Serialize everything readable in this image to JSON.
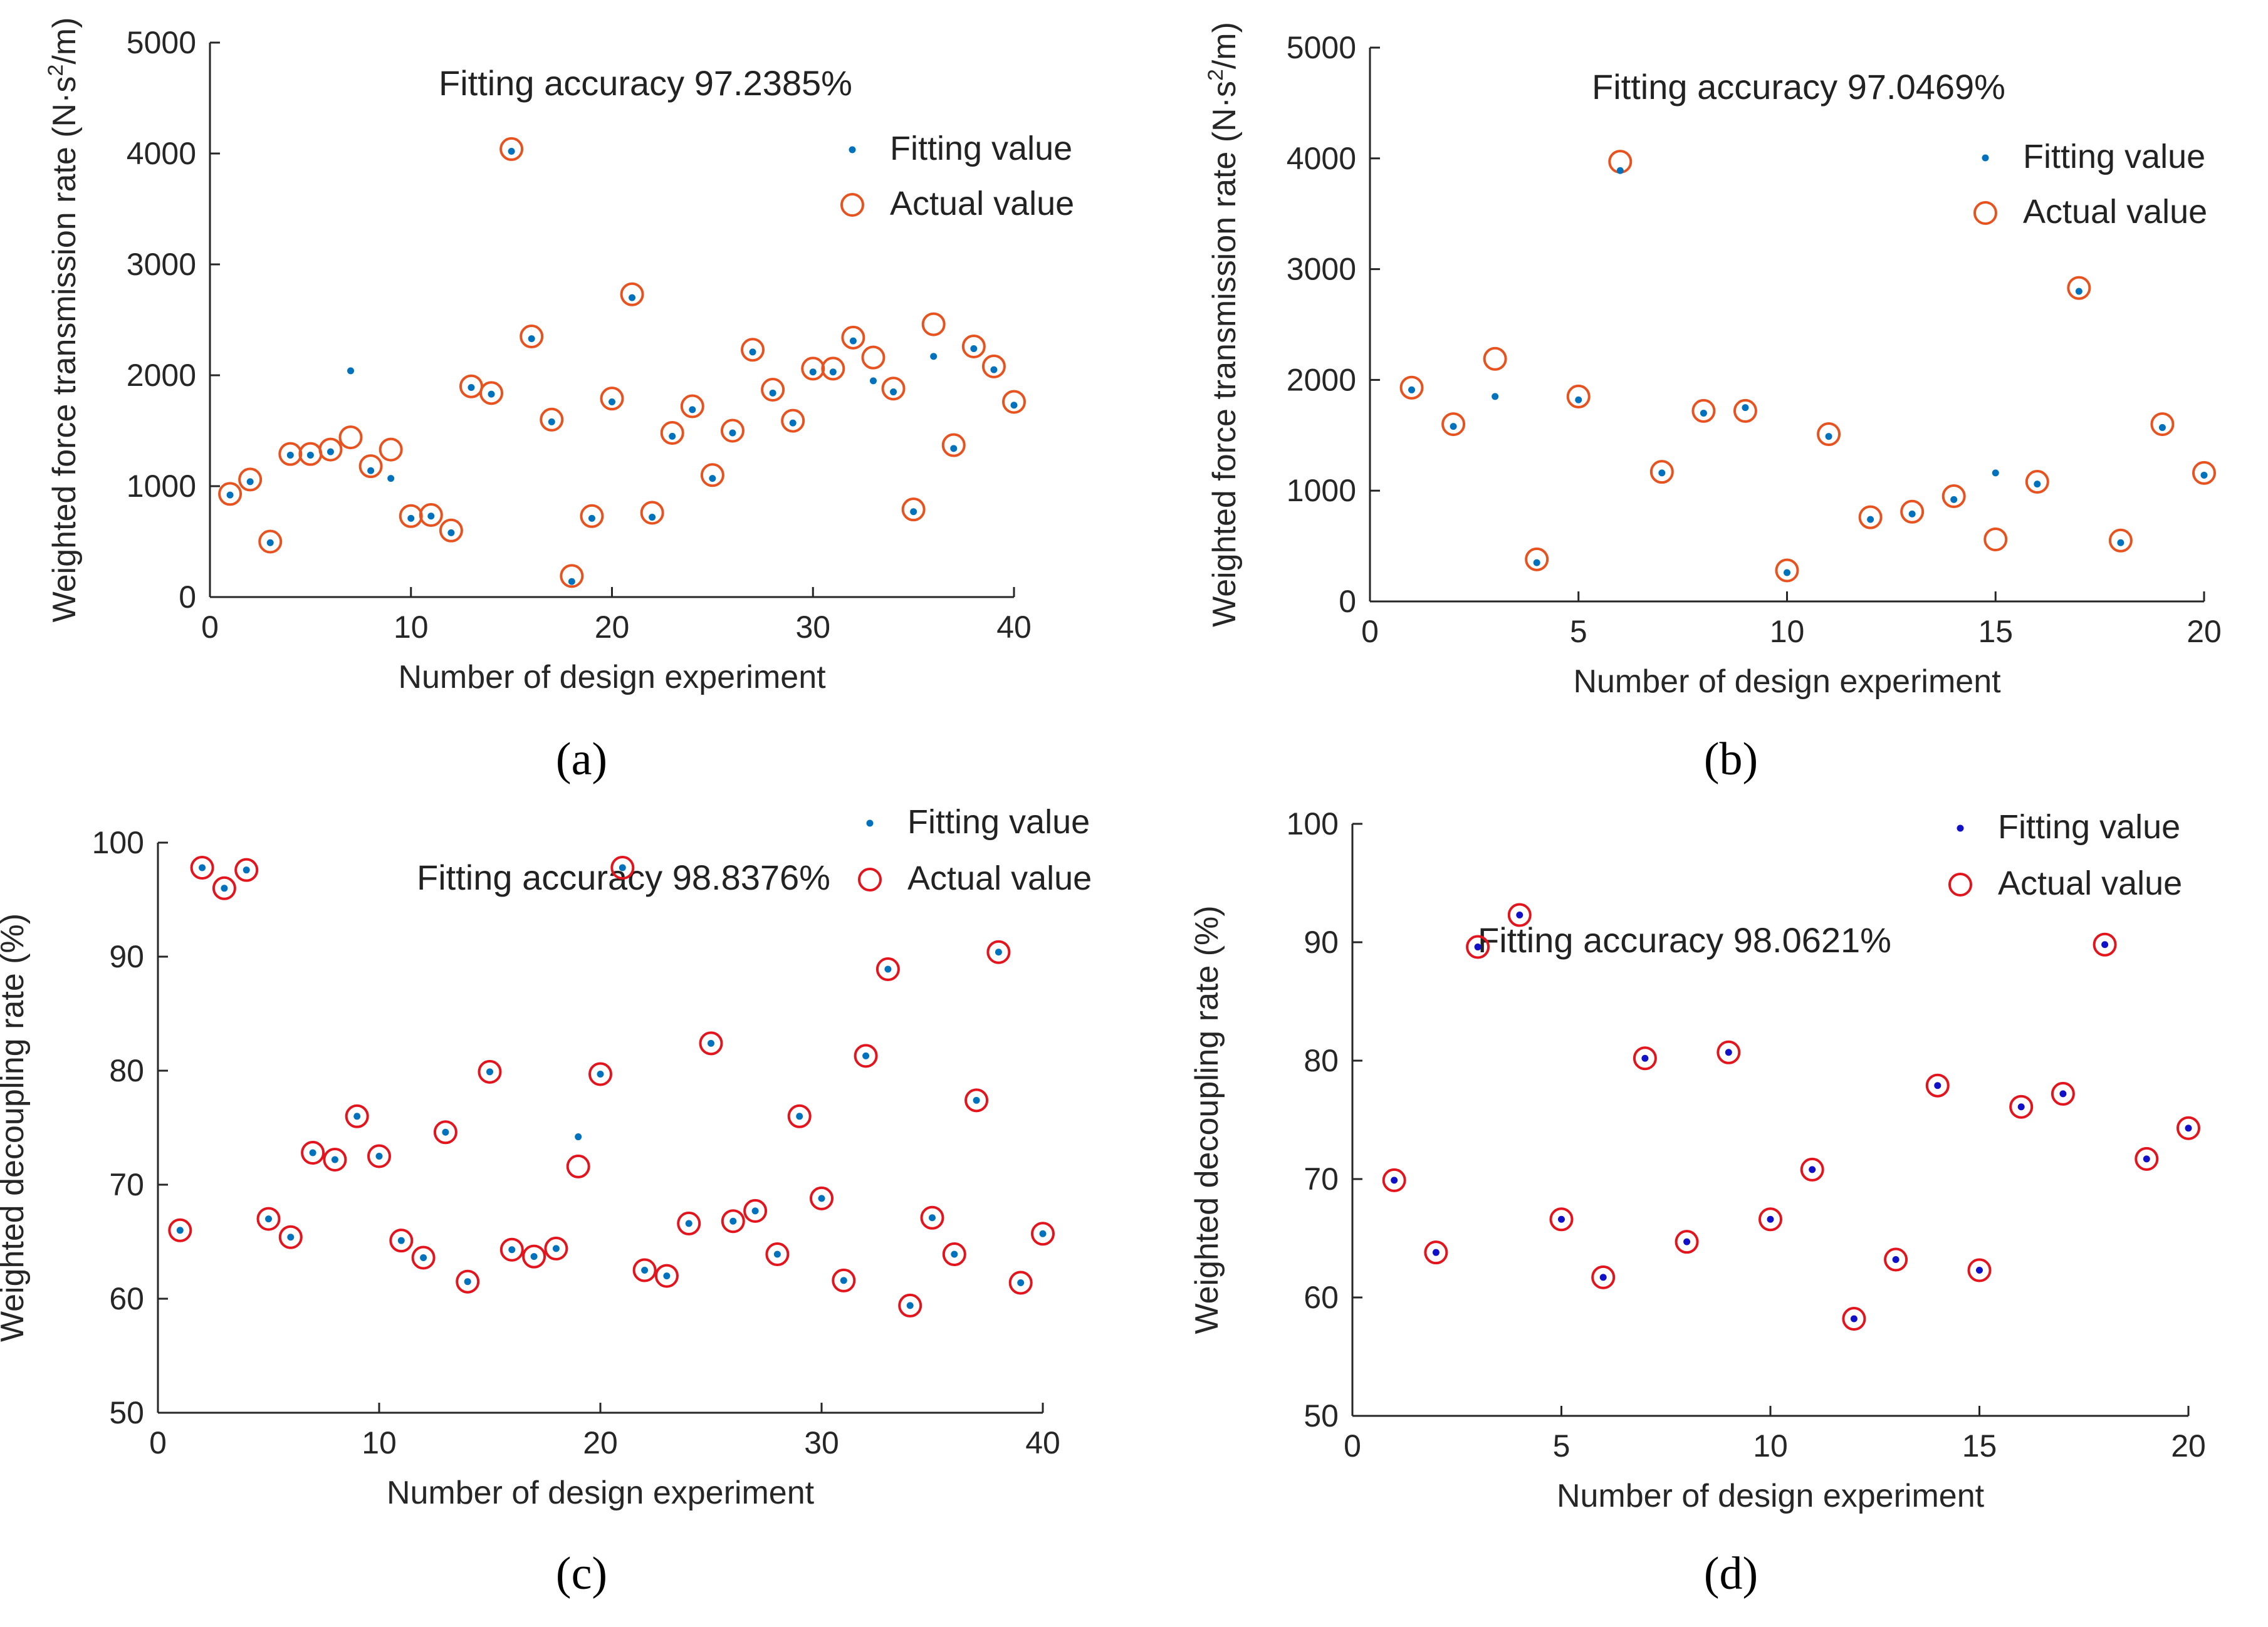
{
  "figure": {
    "sublabels": [
      "(a)",
      "(b)",
      "(c)",
      "(d)"
    ]
  },
  "chart_data": [
    {
      "id": "a",
      "type": "scatter",
      "title": "Fitting accuracy 97.2385%",
      "xlabel": "Number of design experiment",
      "ylabel": "Weighted force transmission rate (N·s²/m)",
      "ylabel_parts": [
        "Weighted force transmission rate (N·s",
        "2",
        "/m)"
      ],
      "xlim": [
        0,
        40
      ],
      "ylim": [
        0,
        5000
      ],
      "xticks": [
        0,
        10,
        20,
        30,
        40
      ],
      "yticks": [
        0,
        1000,
        2000,
        3000,
        4000,
        5000
      ],
      "legend": "top-right",
      "series": [
        {
          "name": "Fitting value",
          "marker": "dot",
          "color": "#0072BD",
          "x": [
            1,
            2,
            3,
            4,
            5,
            6,
            7,
            8,
            9,
            10,
            11,
            12,
            13,
            14,
            15,
            16,
            17,
            18,
            19,
            20,
            21,
            22,
            23,
            24,
            25,
            26,
            27,
            28,
            29,
            30,
            31,
            32,
            33,
            34,
            35,
            36,
            37,
            38,
            39,
            40
          ],
          "y": [
            920,
            1040,
            490,
            1280,
            1280,
            1310,
            2040,
            1140,
            1070,
            710,
            730,
            580,
            1890,
            1830,
            4020,
            2330,
            1580,
            140,
            710,
            1760,
            2700,
            720,
            1450,
            1690,
            1070,
            1480,
            2210,
            1840,
            1570,
            2030,
            2030,
            2310,
            1950,
            1850,
            770,
            2170,
            1340,
            2240,
            2050,
            1730
          ]
        },
        {
          "name": "Actual value",
          "marker": "circle",
          "color": "#E8521E",
          "x": [
            1,
            2,
            3,
            4,
            5,
            6,
            7,
            8,
            9,
            10,
            11,
            12,
            13,
            14,
            15,
            16,
            17,
            18,
            19,
            20,
            21,
            22,
            23,
            24,
            25,
            26,
            27,
            28,
            29,
            30,
            31,
            32,
            33,
            34,
            35,
            36,
            37,
            38,
            39,
            40
          ],
          "y": [
            930,
            1060,
            500,
            1290,
            1290,
            1330,
            1440,
            1180,
            1330,
            730,
            740,
            600,
            1900,
            1840,
            4040,
            2350,
            1600,
            190,
            730,
            1790,
            2730,
            760,
            1480,
            1720,
            1100,
            1500,
            2230,
            1870,
            1590,
            2060,
            2060,
            2340,
            2160,
            1880,
            790,
            2460,
            1370,
            2260,
            2080,
            1760
          ]
        }
      ]
    },
    {
      "id": "b",
      "type": "scatter",
      "title": "Fitting accuracy 97.0469%",
      "xlabel": "Number of design experiment",
      "ylabel": "Weighted force transmission rate (N·s²/m)",
      "ylabel_parts": [
        "Weighted force transmission rate (N·s",
        "2",
        "/m)"
      ],
      "xlim": [
        0,
        20
      ],
      "ylim": [
        0,
        5000
      ],
      "xticks": [
        0,
        5,
        10,
        15,
        20
      ],
      "yticks": [
        0,
        1000,
        2000,
        3000,
        4000,
        5000
      ],
      "legend": "top-right",
      "series": [
        {
          "name": "Fitting value",
          "marker": "dot",
          "color": "#0072BD",
          "x": [
            1,
            2,
            3,
            4,
            5,
            6,
            7,
            8,
            9,
            10,
            11,
            12,
            13,
            14,
            15,
            16,
            17,
            18,
            19,
            20
          ],
          "y": [
            1910,
            1580,
            1850,
            350,
            1820,
            3890,
            1160,
            1700,
            1750,
            260,
            1490,
            740,
            790,
            920,
            1160,
            1060,
            2800,
            530,
            1570,
            1140
          ]
        },
        {
          "name": "Actual value",
          "marker": "circle",
          "color": "#E8521E",
          "x": [
            1,
            2,
            3,
            4,
            5,
            6,
            7,
            8,
            9,
            10,
            11,
            12,
            13,
            14,
            15,
            16,
            17,
            18,
            19,
            20
          ],
          "y": [
            1930,
            1600,
            2190,
            380,
            1850,
            3970,
            1170,
            1720,
            1720,
            280,
            1510,
            760,
            810,
            950,
            560,
            1080,
            2830,
            550,
            1600,
            1160
          ]
        }
      ]
    },
    {
      "id": "c",
      "type": "scatter",
      "title": "Fitting accuracy 98.8376%",
      "xlabel": "Number of design experiment",
      "ylabel": "Weighted decoupling rate (%)",
      "xlim": [
        0,
        40
      ],
      "ylim": [
        50,
        100
      ],
      "xticks": [
        0,
        10,
        20,
        30,
        40
      ],
      "yticks": [
        50,
        60,
        70,
        80,
        90,
        100
      ],
      "legend": "top-right",
      "series": [
        {
          "name": "Fitting value",
          "marker": "dot",
          "color": "#0072BD",
          "x": [
            1,
            2,
            3,
            4,
            5,
            6,
            7,
            8,
            9,
            10,
            11,
            12,
            13,
            14,
            15,
            16,
            17,
            18,
            19,
            20,
            21,
            22,
            23,
            24,
            25,
            26,
            27,
            28,
            29,
            30,
            31,
            32,
            33,
            34,
            35,
            36,
            37,
            38,
            39,
            40
          ],
          "y": [
            66,
            97.8,
            96,
            97.6,
            67,
            65.4,
            72.8,
            72.2,
            76,
            72.5,
            65.1,
            63.6,
            74.6,
            61.5,
            79.9,
            64.3,
            63.7,
            64.4,
            74.2,
            79.7,
            97.8,
            62.5,
            62,
            66.6,
            82.4,
            66.8,
            67.7,
            63.9,
            76,
            68.8,
            61.6,
            81.3,
            88.9,
            59.4,
            67.1,
            63.9,
            77.4,
            90.4,
            61.4,
            65.7
          ]
        },
        {
          "name": "Actual value",
          "marker": "circle",
          "color": "#E3141C",
          "x": [
            1,
            2,
            3,
            4,
            5,
            6,
            7,
            8,
            9,
            10,
            11,
            12,
            13,
            14,
            15,
            16,
            17,
            18,
            19,
            20,
            21,
            22,
            23,
            24,
            25,
            26,
            27,
            28,
            29,
            30,
            31,
            32,
            33,
            34,
            35,
            36,
            37,
            38,
            39,
            40
          ],
          "y": [
            66,
            97.8,
            96,
            97.6,
            67,
            65.4,
            72.8,
            72.2,
            76,
            72.5,
            65.1,
            63.6,
            74.6,
            61.5,
            79.9,
            64.3,
            63.7,
            64.4,
            71.6,
            79.7,
            97.8,
            62.5,
            62,
            66.6,
            82.4,
            66.8,
            67.7,
            63.9,
            76,
            68.8,
            61.6,
            81.3,
            88.9,
            59.4,
            67.1,
            63.9,
            77.4,
            90.4,
            61.4,
            65.7
          ]
        }
      ]
    },
    {
      "id": "d",
      "type": "scatter",
      "title": "Fitting accuracy 98.0621%",
      "xlabel": "Number of design experiment",
      "ylabel": "Weighted decoupling rate (%)",
      "xlim": [
        0,
        20
      ],
      "ylim": [
        50,
        100
      ],
      "xticks": [
        0,
        5,
        10,
        15,
        20
      ],
      "yticks": [
        50,
        60,
        70,
        80,
        90,
        100
      ],
      "legend": "top-right",
      "series": [
        {
          "name": "Fitting value",
          "marker": "dot",
          "color": "#1010C8",
          "x": [
            1,
            2,
            3,
            4,
            5,
            6,
            7,
            8,
            9,
            10,
            11,
            12,
            13,
            14,
            15,
            16,
            17,
            18,
            19,
            20
          ],
          "y": [
            69.9,
            63.8,
            89.6,
            92.3,
            66.6,
            61.7,
            80.2,
            64.7,
            80.7,
            66.6,
            70.8,
            58.2,
            63.2,
            77.9,
            62.3,
            76.1,
            77.2,
            89.8,
            71.7,
            74.3
          ]
        },
        {
          "name": "Actual value",
          "marker": "circle",
          "color": "#E3141C",
          "x": [
            1,
            2,
            3,
            4,
            5,
            6,
            7,
            8,
            9,
            10,
            11,
            12,
            13,
            14,
            15,
            16,
            17,
            18,
            19,
            20
          ],
          "y": [
            69.9,
            63.8,
            89.6,
            92.3,
            66.6,
            61.7,
            80.2,
            64.7,
            80.7,
            66.6,
            70.8,
            58.2,
            63.2,
            77.9,
            62.3,
            76.1,
            77.2,
            89.8,
            71.7,
            74.3
          ]
        }
      ]
    }
  ]
}
